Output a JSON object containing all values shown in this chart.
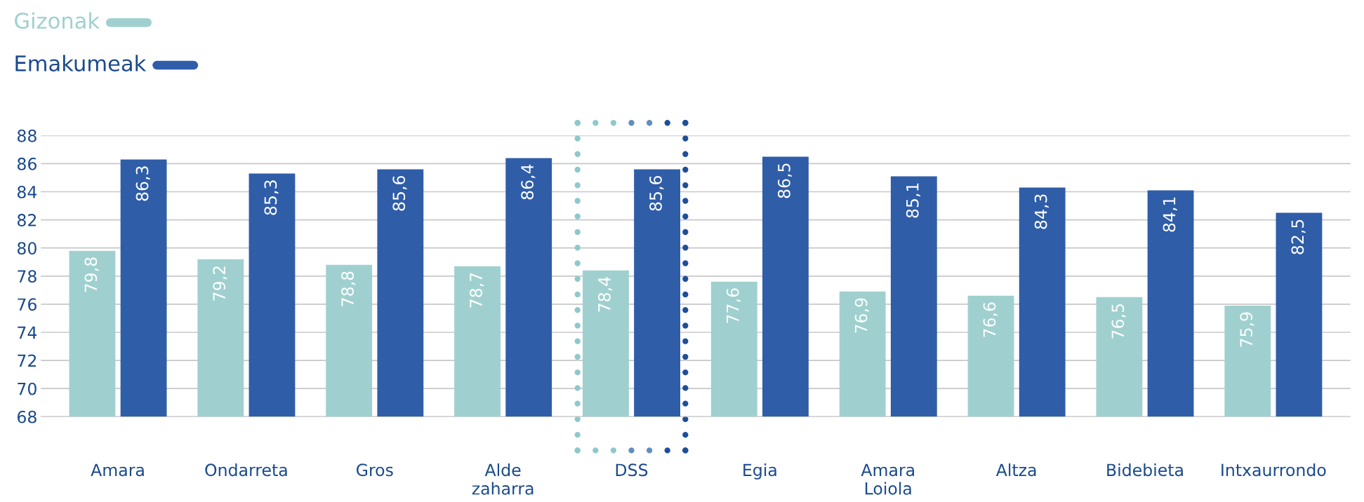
{
  "chart_data": {
    "type": "bar",
    "categories": [
      "Amara",
      "Ondarreta",
      "Gros",
      "Alde\nzaharra",
      "DSS",
      "Egia",
      "Amara\nLoiola",
      "Altza",
      "Bidebieta",
      "Intxaurrondo"
    ],
    "series": [
      {
        "name": "Gizonak",
        "color": "#9fd0cf",
        "values": [
          79.8,
          79.2,
          78.8,
          78.7,
          78.4,
          77.6,
          76.9,
          76.6,
          76.5,
          75.9
        ],
        "value_labels": [
          "79,8",
          "79,2",
          "78,8",
          "78,7",
          "78,4",
          "77,6",
          "76,9",
          "76,6",
          "76,5",
          "75,9"
        ]
      },
      {
        "name": "Emakumeak",
        "color": "#2f5da8",
        "values": [
          86.3,
          85.3,
          85.6,
          86.4,
          85.6,
          86.5,
          85.1,
          84.3,
          84.1,
          82.5
        ],
        "value_labels": [
          "86,3",
          "85,3",
          "85,6",
          "86,4",
          "85,6",
          "86,5",
          "85,1",
          "84,3",
          "84,1",
          "82,5"
        ]
      }
    ],
    "ylim": [
      68,
      88
    ],
    "yticks": [
      68,
      70,
      72,
      74,
      76,
      78,
      80,
      82,
      84,
      86,
      88
    ],
    "grid": "y",
    "legend": "top left"
  }
}
